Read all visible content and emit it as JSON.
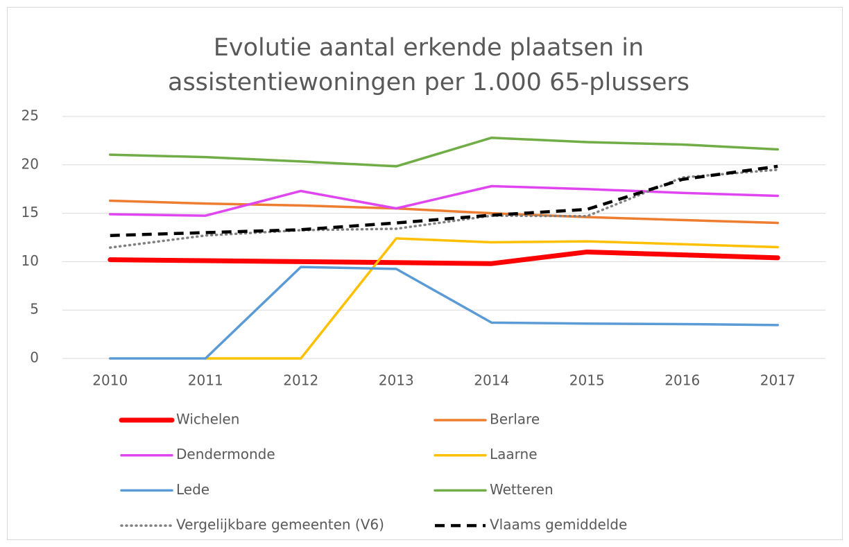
{
  "chart_data": {
    "type": "line",
    "title": [
      "Evolutie aantal erkende plaatsen in",
      "assistentiewoningen per 1.000 65-plussers"
    ],
    "categories": [
      "2010",
      "2011",
      "2012",
      "2013",
      "2014",
      "2015",
      "2016",
      "2017"
    ],
    "ylim": [
      0,
      25
    ],
    "yticks": [
      0,
      5,
      10,
      15,
      20,
      25
    ],
    "grid": true,
    "series": [
      {
        "name": "Wichelen",
        "color": "#ff0000",
        "values": [
          10.2,
          10.1,
          10.0,
          9.9,
          9.8,
          11.0,
          10.7,
          10.4
        ]
      },
      {
        "name": "Berlare",
        "color": "#ed7d31",
        "values": [
          16.3,
          16.0,
          15.8,
          15.5,
          15.0,
          14.6,
          14.3,
          14.0
        ]
      },
      {
        "name": "Dendermonde",
        "color": "#e046f0",
        "values": [
          14.9,
          14.75,
          17.3,
          15.5,
          17.8,
          17.5,
          17.1,
          16.8
        ]
      },
      {
        "name": "Laarne",
        "color": "#ffc000",
        "values": [
          null,
          0,
          0,
          12.4,
          12.0,
          12.1,
          11.8,
          11.5
        ]
      },
      {
        "name": "Lede",
        "color": "#5b9bd5",
        "values": [
          0,
          0,
          9.45,
          9.25,
          3.7,
          3.6,
          3.55,
          3.45
        ]
      },
      {
        "name": "Wetteren",
        "color": "#70ad47",
        "values": [
          21.05,
          20.8,
          20.35,
          19.85,
          22.8,
          22.35,
          22.1,
          21.6
        ]
      },
      {
        "name": "Vergelijkbare gemeenten (V6)",
        "color": "#808080",
        "style": "dotted",
        "values": [
          11.45,
          12.7,
          13.25,
          13.4,
          14.75,
          14.7,
          18.7,
          19.5
        ]
      },
      {
        "name": "Vlaams gemiddelde",
        "color": "#000000",
        "style": "dashed",
        "values": [
          12.7,
          13.0,
          13.3,
          14.0,
          14.8,
          15.4,
          18.5,
          19.85
        ]
      }
    ],
    "legend": "bottom"
  }
}
